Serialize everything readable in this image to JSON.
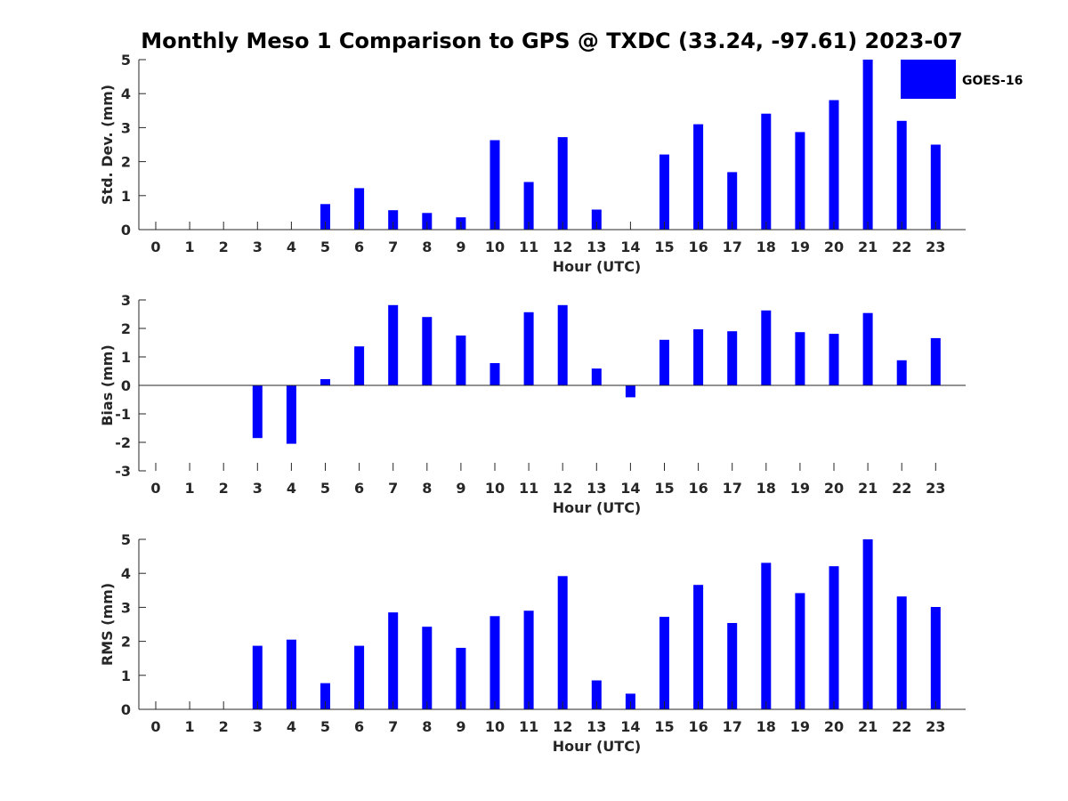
{
  "chart_data": {
    "title": "Monthly Meso 1 Comparison to GPS @ TXDC (33.24, -97.61) 2023-07",
    "legend": {
      "label": "GOES-16",
      "color": "#0000ff",
      "position": "top-right"
    },
    "bar_color": "#0000ff",
    "panels": [
      {
        "type": "bar",
        "name": "std-dev",
        "xlabel": "Hour (UTC)",
        "ylabel": "Std. Dev. (mm)",
        "ylim": [
          0,
          5
        ],
        "yticks": [
          "0",
          "1",
          "2",
          "3",
          "4",
          "5"
        ],
        "categories": [
          "0",
          "1",
          "2",
          "3",
          "4",
          "5",
          "6",
          "7",
          "8",
          "9",
          "10",
          "11",
          "12",
          "13",
          "14",
          "15",
          "16",
          "17",
          "18",
          "19",
          "20",
          "21",
          "22",
          "23"
        ],
        "values": [
          null,
          null,
          null,
          null,
          null,
          0.75,
          1.22,
          0.57,
          0.49,
          0.36,
          2.63,
          1.4,
          2.72,
          0.59,
          null,
          2.21,
          3.1,
          1.69,
          3.41,
          2.87,
          3.81,
          5.0,
          3.2,
          2.5
        ]
      },
      {
        "type": "bar",
        "name": "bias",
        "xlabel": "Hour (UTC)",
        "ylabel": "Bias (mm)",
        "ylim": [
          -3,
          3
        ],
        "yticks": [
          "-3",
          "-2",
          "-1",
          "0",
          "1",
          "2",
          "3"
        ],
        "categories": [
          "0",
          "1",
          "2",
          "3",
          "4",
          "5",
          "6",
          "7",
          "8",
          "9",
          "10",
          "11",
          "12",
          "13",
          "14",
          "15",
          "16",
          "17",
          "18",
          "19",
          "20",
          "21",
          "22",
          "23"
        ],
        "values": [
          null,
          null,
          null,
          -1.85,
          -2.05,
          0.22,
          1.37,
          2.82,
          2.4,
          1.75,
          0.78,
          2.57,
          2.82,
          0.59,
          -0.42,
          1.6,
          1.97,
          1.9,
          2.63,
          1.87,
          1.81,
          2.54,
          0.88,
          1.66
        ]
      },
      {
        "type": "bar",
        "name": "rms",
        "xlabel": "Hour (UTC)",
        "ylabel": "RMS (mm)",
        "ylim": [
          0,
          5
        ],
        "yticks": [
          "0",
          "1",
          "2",
          "3",
          "4",
          "5"
        ],
        "categories": [
          "0",
          "1",
          "2",
          "3",
          "4",
          "5",
          "6",
          "7",
          "8",
          "9",
          "10",
          "11",
          "12",
          "13",
          "14",
          "15",
          "16",
          "17",
          "18",
          "19",
          "20",
          "21",
          "22",
          "23"
        ],
        "values": [
          null,
          null,
          null,
          1.87,
          2.05,
          0.77,
          1.87,
          2.85,
          2.43,
          1.81,
          2.74,
          2.9,
          3.92,
          0.85,
          0.46,
          2.72,
          3.66,
          2.54,
          4.31,
          3.42,
          4.21,
          5.0,
          3.32,
          3.01
        ]
      }
    ]
  }
}
